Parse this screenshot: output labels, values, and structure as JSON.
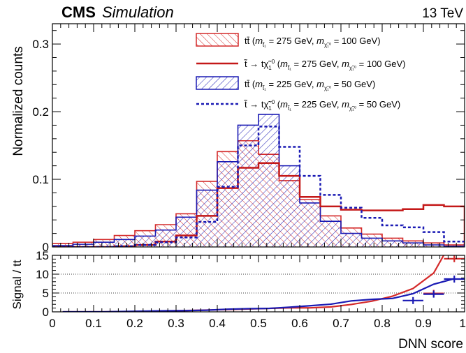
{
  "header": {
    "experiment": "CMS",
    "tag": "Simulation",
    "energy": "13 TeV"
  },
  "chart_data": [
    {
      "type": "histogram",
      "panel": "main",
      "ylabel": "Normalized counts",
      "xlim": [
        0,
        1
      ],
      "ylim": [
        0,
        0.33
      ],
      "yticks": [
        0,
        0.1,
        0.2,
        0.3
      ],
      "ytick_labels": [
        "0",
        "0.1",
        "0.2",
        "0.3"
      ],
      "bin_edges": [
        0,
        0.05,
        0.1,
        0.15,
        0.2,
        0.25,
        0.3,
        0.35,
        0.4,
        0.45,
        0.5,
        0.55,
        0.6,
        0.65,
        0.7,
        0.75,
        0.8,
        0.85,
        0.9,
        0.95,
        1.0
      ],
      "legend_position": "top-right",
      "series": [
        {
          "name": "tt (m_t1 = 275 GeV, m_chi = 100 GeV)",
          "style": "hatched-fill",
          "hatch": "backslash",
          "color": "#d42a2a",
          "values": [
            0.005,
            0.007,
            0.011,
            0.017,
            0.024,
            0.033,
            0.049,
            0.097,
            0.141,
            0.157,
            0.137,
            0.098,
            0.07,
            0.046,
            0.028,
            0.019,
            0.013,
            0.009,
            0.006,
            0.003
          ]
        },
        {
          "name": "stop to t chi (m_t1 = 275 GeV, m_chi = 100 GeV)",
          "style": "solid-line",
          "color": "#c41818",
          "values": [
            0.0,
            0.0,
            0.0,
            0.001,
            0.003,
            0.008,
            0.017,
            0.046,
            0.087,
            0.117,
            0.124,
            0.105,
            0.074,
            0.06,
            0.055,
            0.054,
            0.054,
            0.056,
            0.062,
            0.06
          ]
        },
        {
          "name": "tt (m_t1 = 225 GeV, m_chi = 50 GeV)",
          "style": "hatched-fill",
          "hatch": "slash",
          "color": "#1a1ab4",
          "values": [
            0.002,
            0.004,
            0.007,
            0.011,
            0.016,
            0.025,
            0.044,
            0.084,
            0.126,
            0.18,
            0.196,
            0.12,
            0.065,
            0.038,
            0.02,
            0.013,
            0.009,
            0.006,
            0.003,
            0.001
          ]
        },
        {
          "name": "stop to t chi (m_t1 = 225 GeV, m_chi = 50 GeV)",
          "style": "dashed-line",
          "color": "#1a1ab4",
          "values": [
            0.0,
            0.0,
            0.0,
            0.001,
            0.003,
            0.007,
            0.014,
            0.037,
            0.089,
            0.15,
            0.178,
            0.148,
            0.105,
            0.077,
            0.058,
            0.043,
            0.032,
            0.029,
            0.022,
            0.008
          ]
        }
      ]
    },
    {
      "type": "ratio",
      "panel": "ratio",
      "ylabel": "Signal / tt",
      "xlabel": "DNN score",
      "xlim": [
        0,
        1
      ],
      "ylim": [
        0,
        15
      ],
      "yticks": [
        0,
        5,
        10,
        15
      ],
      "ytick_labels": [
        "0",
        "5",
        "10",
        "15"
      ],
      "xticks": [
        0,
        0.1,
        0.2,
        0.3,
        0.4,
        0.5,
        0.6,
        0.7,
        0.8,
        0.9,
        1
      ],
      "xtick_labels": [
        "0",
        "0.1",
        "0.2",
        "0.3",
        "0.4",
        "0.5",
        "0.6",
        "0.7",
        "0.8",
        "0.9",
        "1"
      ],
      "reference_lines": [
        5,
        10
      ],
      "series": [
        {
          "name": "275/100",
          "color": "#d42a2a",
          "x": [
            0.025,
            0.075,
            0.125,
            0.175,
            0.225,
            0.275,
            0.325,
            0.375,
            0.425,
            0.475,
            0.525,
            0.575,
            0.625,
            0.675,
            0.725,
            0.775,
            0.825,
            0.875,
            0.925,
            0.975
          ],
          "values": [
            0.0,
            0.0,
            0.0,
            0.06,
            0.12,
            0.24,
            0.35,
            0.47,
            0.62,
            0.75,
            0.91,
            1.07,
            1.06,
            1.3,
            1.96,
            2.84,
            4.15,
            6.2,
            10.3,
            20.0
          ]
        },
        {
          "name": "225/50",
          "color": "#1a1ab4",
          "x": [
            0.025,
            0.075,
            0.125,
            0.175,
            0.225,
            0.275,
            0.325,
            0.375,
            0.425,
            0.475,
            0.525,
            0.575,
            0.625,
            0.675,
            0.725,
            0.775,
            0.825,
            0.875,
            0.925,
            0.975
          ],
          "values": [
            0.0,
            0.0,
            0.0,
            0.09,
            0.19,
            0.28,
            0.32,
            0.44,
            0.71,
            0.83,
            0.91,
            1.23,
            1.62,
            2.03,
            2.9,
            3.31,
            3.56,
            4.83,
            7.33,
            8.8
          ]
        }
      ],
      "markers": [
        {
          "series": "275/100",
          "x": 0.925,
          "y": 4.9
        },
        {
          "series": "275/100",
          "x": 0.975,
          "y": 14.1
        },
        {
          "series": "225/50",
          "x": 0.875,
          "y": 3.0
        },
        {
          "series": "225/50",
          "x": 0.925,
          "y": 4.7
        },
        {
          "series": "225/50",
          "x": 0.975,
          "y": 8.7
        }
      ]
    }
  ]
}
